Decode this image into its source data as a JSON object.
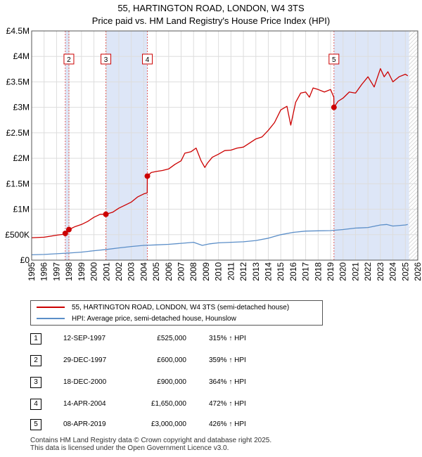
{
  "chart_data": {
    "type": "line",
    "title": "55, HARTINGTON ROAD, LONDON, W4 3TS",
    "subtitle": "Price paid vs. HM Land Registry's House Price Index (HPI)",
    "xlabel": "",
    "ylabel": "",
    "xlim": [
      1995,
      2026
    ],
    "ylim": [
      0,
      4500000
    ],
    "y_ticks": [
      {
        "value": 0,
        "label": "£0"
      },
      {
        "value": 500000,
        "label": "£500K"
      },
      {
        "value": 1000000,
        "label": "£1M"
      },
      {
        "value": 1500000,
        "label": "£1.5M"
      },
      {
        "value": 2000000,
        "label": "£2M"
      },
      {
        "value": 2500000,
        "label": "£2.5M"
      },
      {
        "value": 3000000,
        "label": "£3M"
      },
      {
        "value": 3500000,
        "label": "£3.5M"
      },
      {
        "value": 4000000,
        "label": "£4M"
      },
      {
        "value": 4500000,
        "label": "£4.5M"
      }
    ],
    "x_ticks": [
      "1995",
      "1996",
      "1997",
      "1998",
      "1999",
      "2000",
      "2001",
      "2002",
      "2003",
      "2004",
      "2005",
      "2006",
      "2007",
      "2008",
      "2009",
      "2010",
      "2011",
      "2012",
      "2013",
      "2014",
      "2015",
      "2016",
      "2017",
      "2018",
      "2019",
      "2020",
      "2021",
      "2022",
      "2023",
      "2024",
      "2025",
      "2026"
    ],
    "grid": true,
    "shaded_ranges": [
      [
        1997.7,
        1998.0
      ],
      [
        2000.96,
        2004.29
      ],
      [
        2019.27,
        2025.3
      ]
    ],
    "hatched_from": 2025.3,
    "series": [
      {
        "name": "55, HARTINGTON ROAD, LONDON, W4 3TS (semi-detached house)",
        "color": "#cc0000",
        "x": [
          1995.0,
          1996.0,
          1996.5,
          1997.0,
          1997.5,
          1997.7,
          1997.99,
          1998.5,
          1999.0,
          1999.5,
          2000.0,
          2000.5,
          2000.96,
          2001.5,
          2002.0,
          2002.5,
          2003.0,
          2003.5,
          2004.0,
          2004.28,
          2004.29,
          2004.6,
          2005.0,
          2005.5,
          2006.0,
          2006.5,
          2007.0,
          2007.3,
          2007.8,
          2008.2,
          2008.6,
          2008.9,
          2009.1,
          2009.5,
          2010.0,
          2010.5,
          2011.0,
          2011.5,
          2012.0,
          2012.5,
          2013.0,
          2013.5,
          2014.0,
          2014.5,
          2015.0,
          2015.5,
          2015.8,
          2016.2,
          2016.6,
          2017.0,
          2017.3,
          2017.6,
          2018.0,
          2018.5,
          2019.0,
          2019.26,
          2019.27,
          2019.6,
          2020.0,
          2020.5,
          2021.0,
          2021.5,
          2022.0,
          2022.5,
          2023.0,
          2023.3,
          2023.6,
          2024.0,
          2024.5,
          2025.0,
          2025.2
        ],
        "values": [
          440000,
          450000,
          470000,
          490000,
          505000,
          525000,
          600000,
          660000,
          700000,
          760000,
          840000,
          900000,
          900000,
          940000,
          1020000,
          1080000,
          1140000,
          1240000,
          1300000,
          1320000,
          1650000,
          1720000,
          1740000,
          1760000,
          1790000,
          1880000,
          1950000,
          2100000,
          2130000,
          2200000,
          1950000,
          1820000,
          1900000,
          2020000,
          2080000,
          2150000,
          2160000,
          2200000,
          2220000,
          2300000,
          2380000,
          2420000,
          2550000,
          2700000,
          2950000,
          3020000,
          2650000,
          3100000,
          3280000,
          3300000,
          3200000,
          3380000,
          3350000,
          3300000,
          3350000,
          3200000,
          3000000,
          3120000,
          3180000,
          3300000,
          3280000,
          3450000,
          3600000,
          3400000,
          3760000,
          3600000,
          3700000,
          3500000,
          3600000,
          3650000,
          3620000
        ]
      },
      {
        "name": "HPI: Average price, semi-detached house, Hounslow",
        "color": "#5b8ec8",
        "x": [
          1995.0,
          1996.0,
          1997.0,
          1998.0,
          1999.0,
          2000.0,
          2001.0,
          2002.0,
          2003.0,
          2004.0,
          2005.0,
          2006.0,
          2007.0,
          2008.0,
          2008.7,
          2009.3,
          2010.0,
          2011.0,
          2012.0,
          2013.0,
          2014.0,
          2015.0,
          2016.0,
          2017.0,
          2018.0,
          2019.0,
          2020.0,
          2021.0,
          2022.0,
          2023.0,
          2023.5,
          2024.0,
          2025.0,
          2025.2
        ],
        "values": [
          105000,
          112000,
          125000,
          140000,
          158000,
          185000,
          210000,
          240000,
          268000,
          290000,
          300000,
          310000,
          330000,
          350000,
          290000,
          320000,
          340000,
          350000,
          360000,
          385000,
          430000,
          500000,
          545000,
          570000,
          575000,
          580000,
          600000,
          630000,
          640000,
          690000,
          700000,
          670000,
          690000,
          700000
        ]
      }
    ],
    "markers": [
      {
        "label": "1",
        "x": 1997.7,
        "y": 525000
      },
      {
        "label": "2",
        "x": 1997.99,
        "y": 600000
      },
      {
        "label": "3",
        "x": 2000.96,
        "y": 900000
      },
      {
        "label": "4",
        "x": 2004.29,
        "y": 1650000
      },
      {
        "label": "5",
        "x": 2019.27,
        "y": 3000000
      }
    ],
    "marker_boxes": [
      "2",
      "3",
      "4",
      "5"
    ]
  },
  "legend": {
    "property_label": "55, HARTINGTON ROAD, LONDON, W4 3TS (semi-detached house)",
    "hpi_label": "HPI: Average price, semi-detached house, Hounslow",
    "property_color": "#cc0000",
    "hpi_color": "#5b8ec8"
  },
  "transactions": [
    {
      "num": "1",
      "date": "12-SEP-1997",
      "price": "£525,000",
      "hpi": "315% ↑ HPI"
    },
    {
      "num": "2",
      "date": "29-DEC-1997",
      "price": "£600,000",
      "hpi": "359% ↑ HPI"
    },
    {
      "num": "3",
      "date": "18-DEC-2000",
      "price": "£900,000",
      "hpi": "364% ↑ HPI"
    },
    {
      "num": "4",
      "date": "14-APR-2004",
      "price": "£1,650,000",
      "hpi": "472% ↑ HPI"
    },
    {
      "num": "5",
      "date": "08-APR-2019",
      "price": "£3,000,000",
      "hpi": "426% ↑ HPI"
    }
  ],
  "footer": {
    "line1": "Contains HM Land Registry data © Crown copyright and database right 2025.",
    "line2": "This data is licensed under the Open Government Licence v3.0."
  }
}
